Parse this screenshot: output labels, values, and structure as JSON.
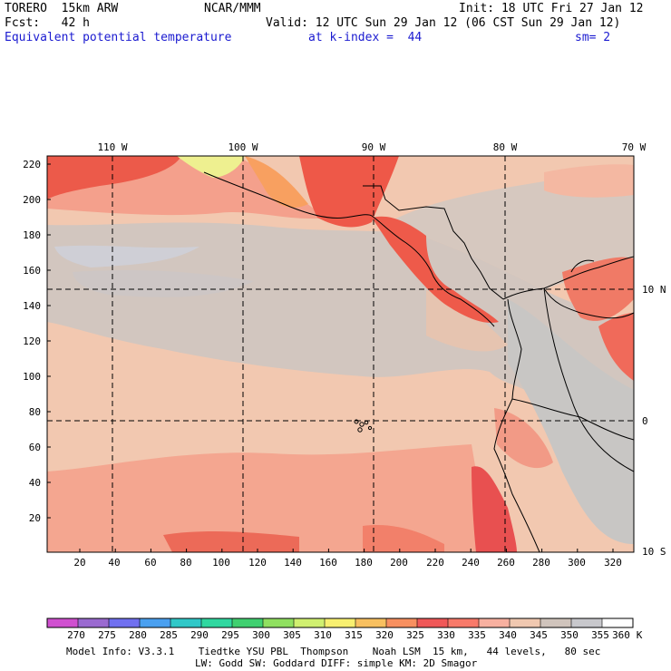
{
  "header": {
    "model": "TORERO  15km ARW",
    "center": "NCAR/MMM",
    "init": "Init: 18 UTC Fri 27 Jan 12",
    "fcst": "Fcst:   42 h",
    "valid": "Valid: 12 UTC Sun 29 Jan 12 (06 CST Sun 29 Jan 12)",
    "field": "Equivalent potential temperature",
    "level": "at k-index =  44",
    "smooth": "sm= 2"
  },
  "map": {
    "top_lon_labels": [
      "110 W",
      "100 W",
      "90 W",
      "80 W",
      "70 W"
    ],
    "right_lat_labels": [
      "10 N",
      "0",
      "10 S"
    ],
    "y_ticks": [
      "220",
      "200",
      "180",
      "160",
      "140",
      "120",
      "100",
      "80",
      "60",
      "40",
      "20"
    ],
    "x_ticks": [
      "20",
      "40",
      "60",
      "80",
      "100",
      "120",
      "140",
      "160",
      "180",
      "200",
      "220",
      "240",
      "260",
      "280",
      "300",
      "320"
    ]
  },
  "colorbar": {
    "values": [
      "270",
      "275",
      "280",
      "285",
      "290",
      "295",
      "300",
      "305",
      "310",
      "315",
      "320",
      "325",
      "330",
      "335",
      "340",
      "345",
      "350",
      "355",
      "360"
    ],
    "unit": "K",
    "colors": [
      "#d050d0",
      "#9a6ad0",
      "#7070f0",
      "#4aa0f0",
      "#30c8c8",
      "#30d8a0",
      "#40d070",
      "#90e060",
      "#d0f070",
      "#f8f070",
      "#f8c060",
      "#f89060",
      "#f05858",
      "#f87a6a",
      "#f8b0a0",
      "#f0c8b0",
      "#d0c4bc",
      "#c8c8cc",
      "#ffffff"
    ]
  },
  "footer": {
    "line1": "Model Info: V3.3.1    Tiedtke YSU PBL  Thompson    Noah LSM  15 km,   44 levels,   80 sec",
    "line2": "LW: Godd SW: Goddard DIFF: simple KM: 2D Smagor"
  }
}
